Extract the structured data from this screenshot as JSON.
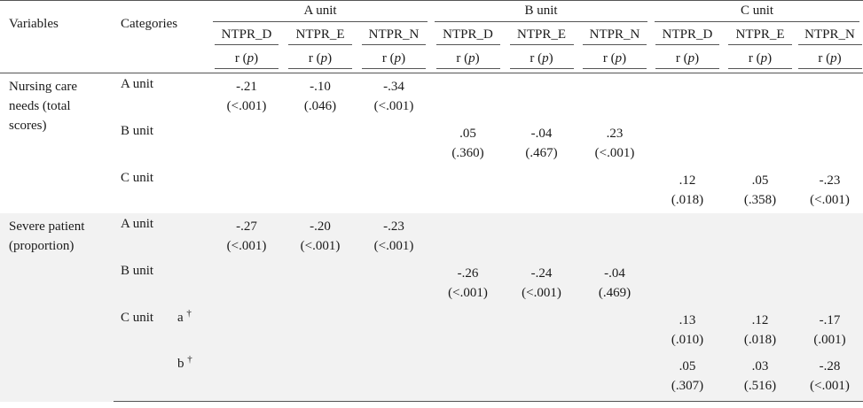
{
  "header": {
    "variables_label": "Variables",
    "categories_label": "Categories",
    "units": [
      "A unit",
      "B unit",
      "C unit"
    ],
    "metrics": [
      "NTPR_D",
      "NTPR_E",
      "NTPR_N"
    ],
    "stat_r": "r",
    "stat_p": "p"
  },
  "sections": [
    {
      "variable": "Nursing care needs (total scores)",
      "rows": [
        {
          "category": "A unit",
          "sub": "",
          "values": [
            [
              "-.21",
              "(<.001)"
            ],
            [
              "-.10",
              "(.046)"
            ],
            [
              "-.34",
              "(<.001)"
            ],
            [
              "",
              ""
            ],
            [
              "",
              ""
            ],
            [
              "",
              ""
            ],
            [
              "",
              ""
            ],
            [
              "",
              ""
            ],
            [
              "",
              ""
            ]
          ]
        },
        {
          "category": "B unit",
          "sub": "",
          "values": [
            [
              "",
              ""
            ],
            [
              "",
              ""
            ],
            [
              "",
              ""
            ],
            [
              ".05",
              "(.360)"
            ],
            [
              "-.04",
              "(.467)"
            ],
            [
              ".23",
              "(<.001)"
            ],
            [
              "",
              ""
            ],
            [
              "",
              ""
            ],
            [
              "",
              ""
            ]
          ]
        },
        {
          "category": "C unit",
          "sub": "",
          "values": [
            [
              "",
              ""
            ],
            [
              "",
              ""
            ],
            [
              "",
              ""
            ],
            [
              "",
              ""
            ],
            [
              "",
              ""
            ],
            [
              "",
              ""
            ],
            [
              ".12",
              "(.018)"
            ],
            [
              ".05",
              "(.358)"
            ],
            [
              "-.23",
              "(<.001)"
            ]
          ]
        }
      ]
    },
    {
      "variable": "Severe patient (proportion)",
      "rows": [
        {
          "category": "A unit",
          "sub": "",
          "values": [
            [
              "-.27",
              "(<.001)"
            ],
            [
              "-.20",
              "(<.001)"
            ],
            [
              "-.23",
              "(<.001)"
            ],
            [
              "",
              ""
            ],
            [
              "",
              ""
            ],
            [
              "",
              ""
            ],
            [
              "",
              ""
            ],
            [
              "",
              ""
            ],
            [
              "",
              ""
            ]
          ]
        },
        {
          "category": "B unit",
          "sub": "",
          "values": [
            [
              "",
              ""
            ],
            [
              "",
              ""
            ],
            [
              "",
              ""
            ],
            [
              "-.26",
              "(<.001)"
            ],
            [
              "-.24",
              "(<.001)"
            ],
            [
              "-.04",
              "(.469)"
            ],
            [
              "",
              ""
            ],
            [
              "",
              ""
            ],
            [
              "",
              ""
            ]
          ]
        },
        {
          "category": "C unit",
          "sub": "a",
          "dagger": "†",
          "values": [
            [
              "",
              ""
            ],
            [
              "",
              ""
            ],
            [
              "",
              ""
            ],
            [
              "",
              ""
            ],
            [
              "",
              ""
            ],
            [
              "",
              ""
            ],
            [
              ".13",
              "(.010)"
            ],
            [
              ".12",
              "(.018)"
            ],
            [
              "-.17",
              "(.001)"
            ]
          ]
        },
        {
          "category": "",
          "sub": "b",
          "dagger": "†",
          "values": [
            [
              "",
              ""
            ],
            [
              "",
              ""
            ],
            [
              "",
              ""
            ],
            [
              "",
              ""
            ],
            [
              "",
              ""
            ],
            [
              "",
              ""
            ],
            [
              ".05",
              "(.307)"
            ],
            [
              ".03",
              "(.516)"
            ],
            [
              "-.28",
              "(<.001)"
            ]
          ]
        }
      ]
    }
  ],
  "colors": {
    "shade": "#f2f2f2",
    "rule": "#555555",
    "text": "#1a1a1a"
  }
}
